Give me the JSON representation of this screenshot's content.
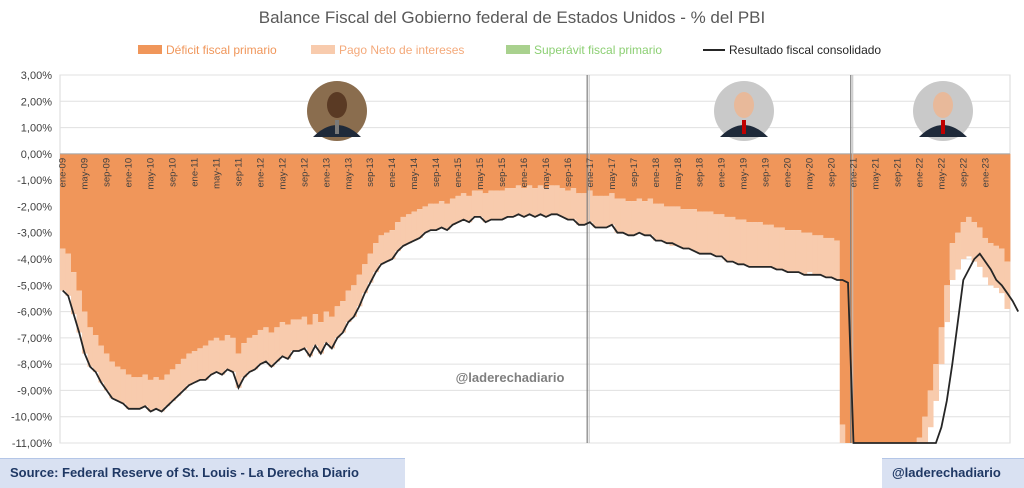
{
  "chart_data": {
    "type": "bar",
    "title": "Balance Fiscal del Gobierno federal de Estados Unidos - % del PBI",
    "legend_position": "top",
    "series": [
      {
        "name": "Déficit fiscal primario",
        "color": "#f0965a",
        "values": [
          -3.6,
          -3.8,
          -4.5,
          -5.2,
          -6.0,
          -6.6,
          -6.9,
          -7.3,
          -7.6,
          -7.9,
          -8.1,
          -8.2,
          -8.4,
          -8.5,
          -8.5,
          -8.4,
          -8.6,
          -8.5,
          -8.6,
          -8.4,
          -8.2,
          -8.0,
          -7.8,
          -7.6,
          -7.5,
          -7.4,
          -7.3,
          -7.1,
          -7.0,
          -7.1,
          -6.9,
          -7.0,
          -7.6,
          -7.2,
          -7.0,
          -6.9,
          -6.7,
          -6.6,
          -6.8,
          -6.6,
          -6.4,
          -6.5,
          -6.3,
          -6.3,
          -6.2,
          -6.5,
          -6.1,
          -6.4,
          -6.0,
          -6.2,
          -5.8,
          -5.6,
          -5.2,
          -5.0,
          -4.6,
          -4.2,
          -3.8,
          -3.4,
          -3.1,
          -3.0,
          -2.9,
          -2.6,
          -2.4,
          -2.3,
          -2.2,
          -2.1,
          -2.0,
          -1.9,
          -1.9,
          -1.8,
          -1.9,
          -1.7,
          -1.6,
          -1.5,
          -1.6,
          -1.4,
          -1.4,
          -1.5,
          -1.4,
          -1.4,
          -1.4,
          -1.3,
          -1.3,
          -1.2,
          -1.3,
          -1.2,
          -1.3,
          -1.2,
          -1.3,
          -1.2,
          -1.2,
          -1.3,
          -1.4,
          -1.3,
          -1.5,
          -1.5,
          -1.4,
          -1.6,
          -1.6,
          -1.6,
          -1.5,
          -1.7,
          -1.7,
          -1.8,
          -1.8,
          -1.7,
          -1.8,
          -1.7,
          -1.9,
          -1.9,
          -2.0,
          -2.0,
          -2.0,
          -2.1,
          -2.1,
          -2.1,
          -2.2,
          -2.2,
          -2.2,
          -2.3,
          -2.3,
          -2.4,
          -2.4,
          -2.5,
          -2.5,
          -2.6,
          -2.6,
          -2.6,
          -2.7,
          -2.7,
          -2.8,
          -2.8,
          -2.9,
          -2.9,
          -2.9,
          -3.0,
          -3.0,
          -3.1,
          -3.1,
          -3.2,
          -3.2,
          -3.3,
          -10.3,
          -11.0,
          -11.0,
          -11.0,
          -11.0,
          -11.0,
          -11.0,
          -11.0,
          -11.0,
          -11.0,
          -11.0,
          -11.0,
          -11.0,
          -11.0,
          -10.8,
          -10.0,
          -9.0,
          -8.0,
          -6.6,
          -5.0,
          -3.4,
          -3.0,
          -2.6,
          -2.4,
          -2.6,
          -2.8,
          -3.2,
          -3.4,
          -3.5,
          -3.6,
          -4.1
        ]
      },
      {
        "name": "Pago Neto de intereses",
        "color": "#f8cbad",
        "values": [
          -1.6,
          -1.6,
          -1.6,
          -1.6,
          -1.6,
          -1.5,
          -1.4,
          -1.4,
          -1.4,
          -1.4,
          -1.3,
          -1.3,
          -1.3,
          -1.2,
          -1.2,
          -1.2,
          -1.2,
          -1.2,
          -1.2,
          -1.2,
          -1.2,
          -1.2,
          -1.2,
          -1.2,
          -1.2,
          -1.2,
          -1.3,
          -1.3,
          -1.3,
          -1.3,
          -1.3,
          -1.3,
          -1.3,
          -1.3,
          -1.3,
          -1.3,
          -1.3,
          -1.3,
          -1.3,
          -1.3,
          -1.3,
          -1.3,
          -1.2,
          -1.2,
          -1.2,
          -1.2,
          -1.2,
          -1.2,
          -1.2,
          -1.2,
          -1.2,
          -1.2,
          -1.2,
          -1.2,
          -1.2,
          -1.1,
          -1.1,
          -1.1,
          -1.1,
          -1.1,
          -1.1,
          -1.1,
          -1.1,
          -1.1,
          -1.1,
          -1.1,
          -1.0,
          -1.0,
          -1.0,
          -1.0,
          -1.0,
          -1.0,
          -1.0,
          -1.0,
          -1.0,
          -1.0,
          -1.0,
          -1.1,
          -1.1,
          -1.1,
          -1.1,
          -1.1,
          -1.1,
          -1.1,
          -1.1,
          -1.1,
          -1.1,
          -1.1,
          -1.1,
          -1.1,
          -1.1,
          -1.1,
          -1.1,
          -1.2,
          -1.2,
          -1.2,
          -1.2,
          -1.2,
          -1.2,
          -1.2,
          -1.2,
          -1.3,
          -1.3,
          -1.3,
          -1.3,
          -1.3,
          -1.3,
          -1.4,
          -1.4,
          -1.4,
          -1.4,
          -1.5,
          -1.5,
          -1.5,
          -1.5,
          -1.6,
          -1.6,
          -1.6,
          -1.6,
          -1.6,
          -1.6,
          -1.7,
          -1.7,
          -1.7,
          -1.7,
          -1.7,
          -1.7,
          -1.7,
          -1.6,
          -1.6,
          -1.6,
          -1.6,
          -1.6,
          -1.6,
          -1.6,
          -1.6,
          -1.5,
          -1.5,
          -1.5,
          -1.5,
          -1.5,
          -1.5,
          -1.5,
          -1.4,
          -1.4,
          -1.4,
          -1.4,
          -1.4,
          -1.4,
          -1.4,
          -1.4,
          -1.4,
          -1.4,
          -1.4,
          -1.4,
          -1.4,
          -1.4,
          -1.4,
          -1.4,
          -1.4,
          -1.4,
          -1.4,
          -1.4,
          -1.4,
          -1.4,
          -1.5,
          -1.5,
          -1.5,
          -1.5,
          -1.6,
          -1.6,
          -1.7,
          -1.8,
          -1.9
        ]
      },
      {
        "name": "Superávit fiscal primario",
        "color": "#a9d18e",
        "values": []
      },
      {
        "name": "Resultado fiscal consolidado",
        "color": "#262626",
        "type": "line",
        "values": [
          -5.2,
          -5.4,
          -6.1,
          -6.8,
          -7.6,
          -8.1,
          -8.3,
          -8.7,
          -9.0,
          -9.3,
          -9.4,
          -9.5,
          -9.7,
          -9.7,
          -9.7,
          -9.6,
          -9.8,
          -9.7,
          -9.8,
          -9.6,
          -9.4,
          -9.2,
          -9.0,
          -8.8,
          -8.7,
          -8.6,
          -8.6,
          -8.4,
          -8.3,
          -8.4,
          -8.2,
          -8.3,
          -8.9,
          -8.5,
          -8.3,
          -8.2,
          -8.0,
          -7.9,
          -8.1,
          -7.9,
          -7.7,
          -7.8,
          -7.5,
          -7.5,
          -7.4,
          -7.7,
          -7.3,
          -7.6,
          -7.2,
          -7.4,
          -7.0,
          -6.8,
          -6.4,
          -6.2,
          -5.8,
          -5.3,
          -4.9,
          -4.5,
          -4.2,
          -4.1,
          -4.0,
          -3.7,
          -3.5,
          -3.4,
          -3.3,
          -3.2,
          -3.0,
          -2.9,
          -2.9,
          -2.8,
          -2.9,
          -2.7,
          -2.6,
          -2.5,
          -2.6,
          -2.4,
          -2.4,
          -2.6,
          -2.5,
          -2.5,
          -2.5,
          -2.4,
          -2.4,
          -2.3,
          -2.4,
          -2.3,
          -2.4,
          -2.3,
          -2.4,
          -2.3,
          -2.3,
          -2.4,
          -2.5,
          -2.5,
          -2.7,
          -2.7,
          -2.6,
          -2.8,
          -2.8,
          -2.8,
          -2.7,
          -3.0,
          -3.0,
          -3.1,
          -3.1,
          -3.0,
          -3.1,
          -3.1,
          -3.3,
          -3.3,
          -3.4,
          -3.4,
          -3.5,
          -3.6,
          -3.6,
          -3.7,
          -3.8,
          -3.8,
          -3.8,
          -3.9,
          -3.9,
          -4.1,
          -4.1,
          -4.2,
          -4.2,
          -4.3,
          -4.3,
          -4.3,
          -4.3,
          -4.3,
          -4.4,
          -4.4,
          -4.5,
          -4.5,
          -4.5,
          -4.6,
          -4.6,
          -4.6,
          -4.6,
          -4.7,
          -4.7,
          -4.8,
          -4.8,
          -4.9,
          -11.0,
          -11.0,
          -11.0,
          -11.0,
          -11.0,
          -11.0,
          -11.0,
          -11.0,
          -11.0,
          -11.0,
          -11.0,
          -11.0,
          -11.0,
          -11.0,
          -11.0,
          -11.0,
          -10.4,
          -9.4,
          -8.0,
          -6.4,
          -4.8,
          -4.4,
          -4.0,
          -3.8,
          -4.1,
          -4.4,
          -4.8,
          -5.0,
          -5.3,
          -5.6,
          -6.0
        ]
      }
    ],
    "y_ticks": [
      "3,00%",
      "2,00%",
      "1,00%",
      "0,00%",
      "-1,00%",
      "-2,00%",
      "-3,00%",
      "-4,00%",
      "-5,00%",
      "-6,00%",
      "-7,00%",
      "-8,00%",
      "-9,00%",
      "-10,00%",
      "-11,00%"
    ],
    "ylim": [
      -11,
      3
    ],
    "x_tick_labels": [
      "ene-09",
      "may-09",
      "sep-09",
      "ene-10",
      "may-10",
      "sep-10",
      "ene-11",
      "may-11",
      "sep-11",
      "ene-12",
      "may-12",
      "sep-12",
      "ene-13",
      "may-13",
      "sep-13",
      "ene-14",
      "may-14",
      "sep-14",
      "ene-15",
      "may-15",
      "sep-15",
      "ene-16",
      "may-16",
      "sep-16",
      "ene-17",
      "may-17",
      "sep-17",
      "ene-18",
      "may-18",
      "sep-18",
      "ene-19",
      "may-19",
      "sep-19",
      "ene-20",
      "may-20",
      "sep-20",
      "ene-21",
      "may-21",
      "sep-21",
      "ene-22",
      "may-22",
      "sep-22",
      "ene-23"
    ],
    "vertical_dividers_at": [
      "ene-17",
      "ene-21"
    ],
    "watermark": "@laderechadiario"
  },
  "footer": {
    "source": "Source: Federal Reserve of St. Louis - La Derecha Diario",
    "handle": "@laderechadiario"
  },
  "portraits": [
    "obama-portrait",
    "trump-portrait",
    "biden-portrait"
  ]
}
